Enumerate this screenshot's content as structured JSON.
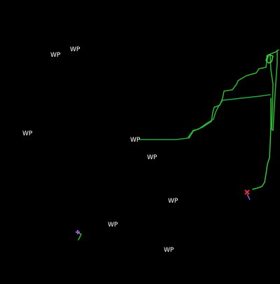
{
  "map": {
    "background": "#000000",
    "waypoint_color": "#ffffff",
    "track_color": "#2eb82e",
    "track_highlight_color": "#3cd63c",
    "waypoints": [
      {
        "label": "WP"
      },
      {
        "label": "WP"
      },
      {
        "label": "WP"
      },
      {
        "label": "WP"
      },
      {
        "label": "WP"
      },
      {
        "label": "WP"
      },
      {
        "label": "WP"
      },
      {
        "label": "WP"
      }
    ],
    "markers": [
      {
        "icon": "red-x-marker-icon",
        "color": "#e03030"
      },
      {
        "icon": "purple-cross-marker-icon",
        "color": "#9b4fd1"
      }
    ]
  }
}
